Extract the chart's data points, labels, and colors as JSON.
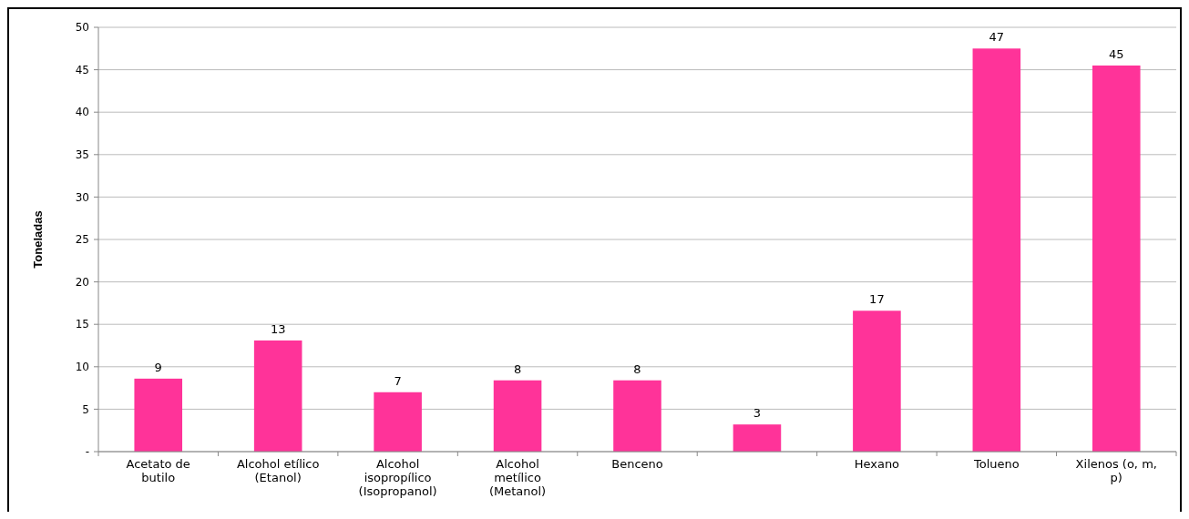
{
  "chart_data": {
    "type": "bar",
    "ylabel": "Toneladas",
    "categories": [
      "Acetato de butilo",
      "Alcohol etílico (Etanol)",
      "Alcohol isopropílico (Isopropanol)",
      "Alcohol metílico (Metanol)",
      "Benceno",
      null,
      "Hexano",
      "Tolueno",
      "Xilenos (o, m, p)"
    ],
    "values": [
      8.6,
      13.1,
      7,
      8.4,
      8.4,
      3.2,
      16.6,
      47.5,
      45.5
    ],
    "value_labels": [
      "9",
      "13",
      "7",
      "8",
      "8",
      "3",
      "17",
      "47",
      "45"
    ],
    "color": "#ff3399",
    "ylim": [
      0,
      50
    ],
    "yticks": [
      {
        "value": 0,
        "label": "-"
      },
      5,
      10,
      15,
      20,
      25,
      30,
      35,
      40,
      45,
      50
    ],
    "grid": "y"
  }
}
